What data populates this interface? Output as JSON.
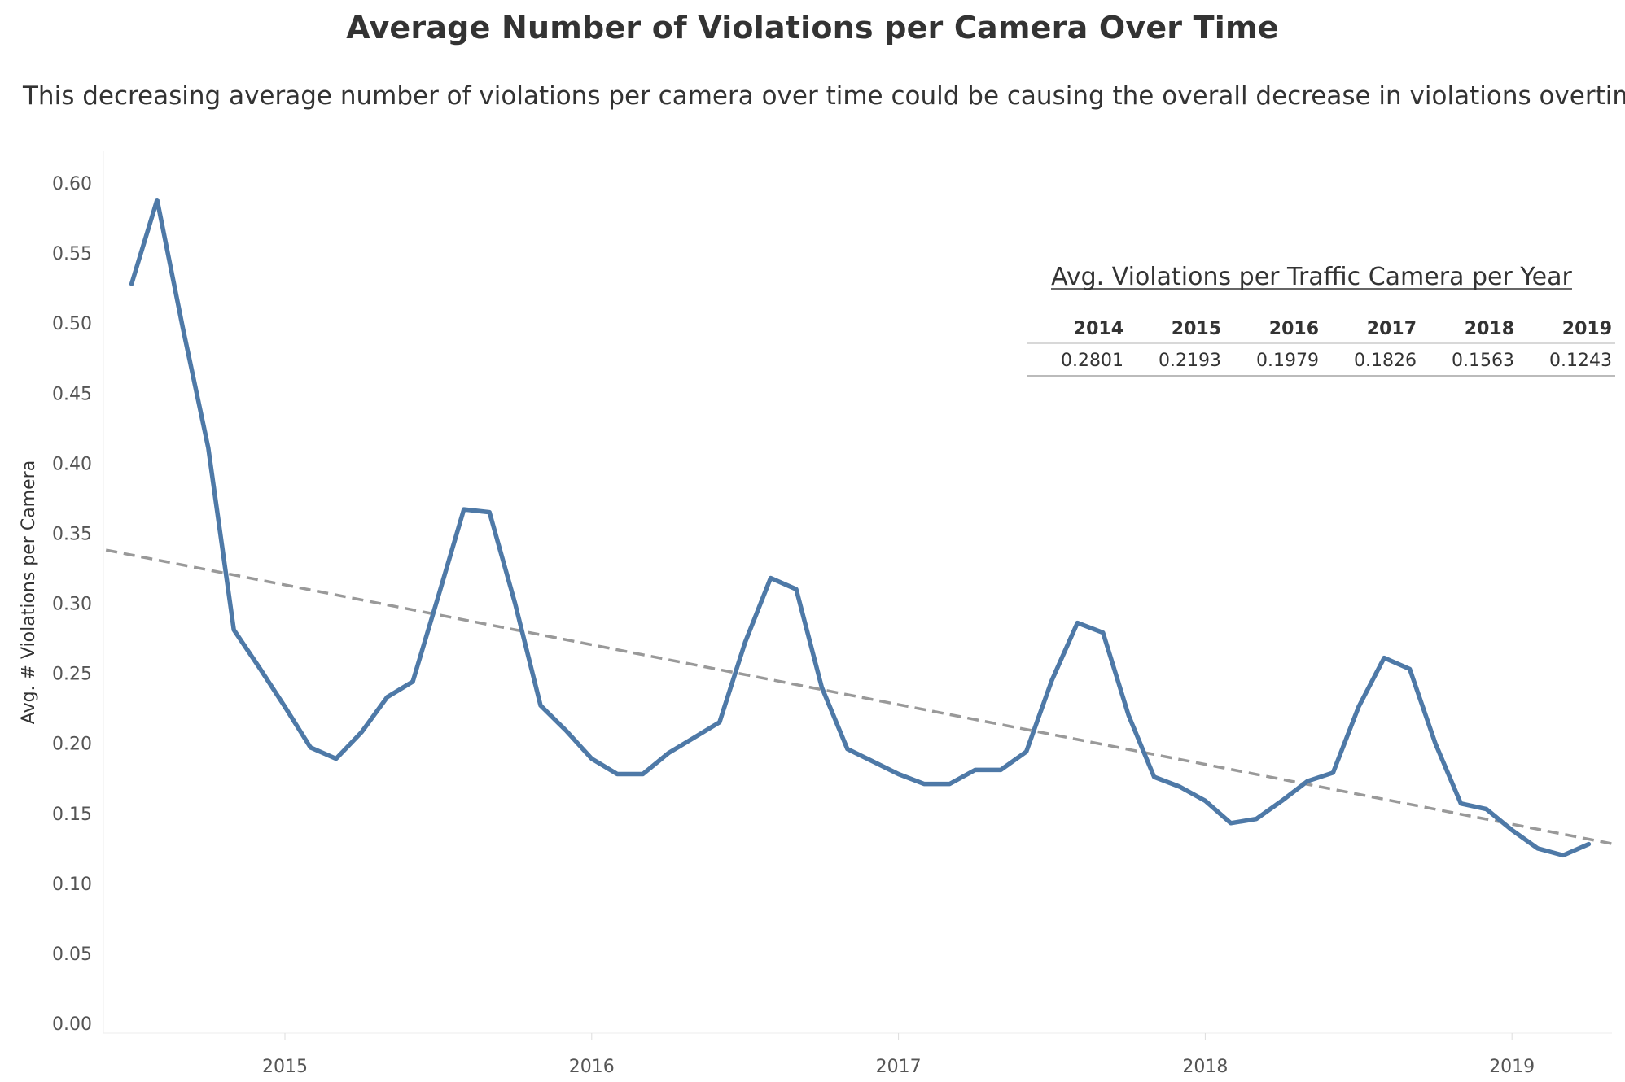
{
  "title": "Average Number of Violations per Camera Over Time",
  "subtitle": "This decreasing average number of violations per camera over time could be causing the overall decrease in violations overtime.",
  "colors": {
    "line": "#4e79a7",
    "trend": "#999999",
    "text": "#333333",
    "grid": "#eeeeee"
  },
  "chart_data": {
    "type": "line",
    "title": "Average Number of Violations per Camera Over Time",
    "ylabel": "Avg. # Violations per Camera",
    "xlabel": "",
    "ylim": [
      0,
      0.6
    ],
    "yticks": [
      "0.00",
      "0.05",
      "0.10",
      "0.15",
      "0.20",
      "0.25",
      "0.30",
      "0.35",
      "0.40",
      "0.45",
      "0.50",
      "0.55",
      "0.60"
    ],
    "xticks": [
      "2015",
      "2016",
      "2017",
      "2018",
      "2019"
    ],
    "grid": false,
    "x": [
      "2014-07",
      "2014-08",
      "2014-09",
      "2014-10",
      "2014-11",
      "2014-12",
      "2015-01",
      "2015-02",
      "2015-03",
      "2015-04",
      "2015-05",
      "2015-06",
      "2015-07",
      "2015-08",
      "2015-09",
      "2015-10",
      "2015-11",
      "2015-12",
      "2016-01",
      "2016-02",
      "2016-03",
      "2016-04",
      "2016-05",
      "2016-06",
      "2016-07",
      "2016-08",
      "2016-09",
      "2016-10",
      "2016-11",
      "2016-12",
      "2017-01",
      "2017-02",
      "2017-03",
      "2017-04",
      "2017-05",
      "2017-06",
      "2017-07",
      "2017-08",
      "2017-09",
      "2017-10",
      "2017-11",
      "2017-12",
      "2018-01",
      "2018-02",
      "2018-03",
      "2018-04",
      "2018-05",
      "2018-06",
      "2018-07",
      "2018-08",
      "2018-09",
      "2018-10",
      "2018-11",
      "2018-12",
      "2019-01",
      "2019-02",
      "2019-03",
      "2019-04"
    ],
    "series": [
      {
        "values": [
          0.528,
          0.588,
          0.497,
          0.411,
          0.281,
          0.254,
          0.226,
          0.197,
          0.189,
          0.208,
          0.233,
          0.244,
          0.305,
          0.367,
          0.365,
          0.3,
          0.227,
          0.209,
          0.189,
          0.178,
          0.178,
          0.193,
          0.204,
          0.215,
          0.272,
          0.318,
          0.31,
          0.24,
          0.196,
          0.187,
          0.178,
          0.171,
          0.171,
          0.181,
          0.181,
          0.194,
          0.245,
          0.286,
          0.279,
          0.22,
          0.176,
          0.169,
          0.159,
          0.143,
          0.146,
          0.159,
          0.173,
          0.179,
          0.226,
          0.261,
          0.253,
          0.2,
          0.157,
          0.153,
          0.138,
          0.125,
          0.12,
          0.128
        ]
      }
    ],
    "trend": {
      "style": "dashed",
      "start": [
        "2014-06",
        0.338
      ],
      "end": [
        "2019-05",
        0.128
      ]
    }
  },
  "summary_table": {
    "title": "Avg. Violations per Traffic Camera per Year",
    "years": [
      "2014",
      "2015",
      "2016",
      "2017",
      "2018",
      "2019"
    ],
    "values": [
      "0.2801",
      "0.2193",
      "0.1979",
      "0.1826",
      "0.1563",
      "0.1243"
    ]
  }
}
